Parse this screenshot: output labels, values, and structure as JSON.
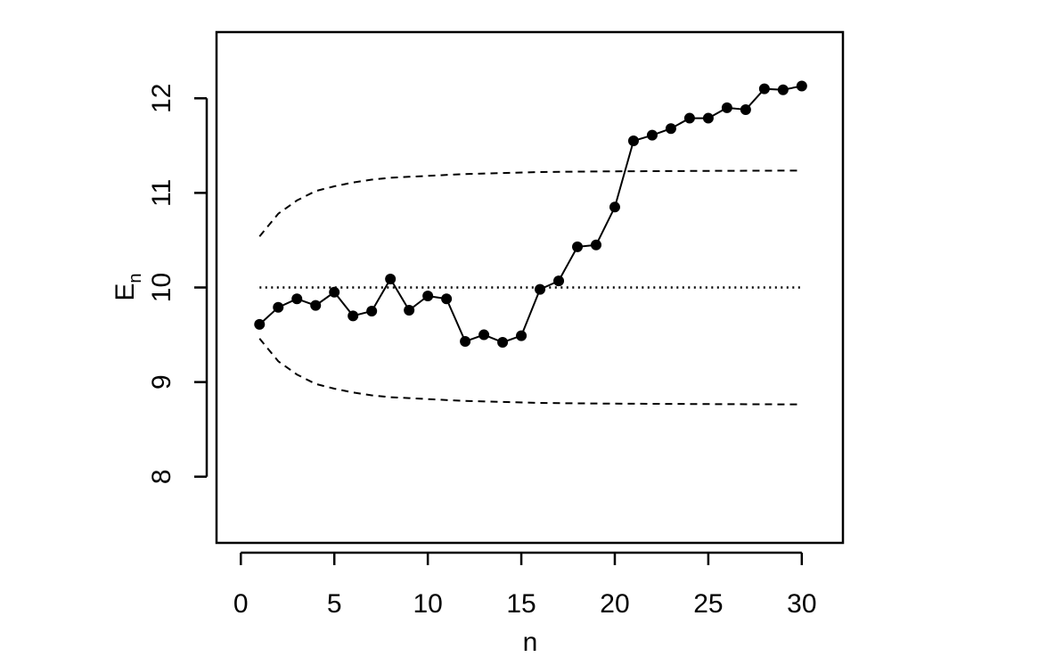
{
  "chart_data": {
    "type": "line",
    "xlabel": "n",
    "ylabel": {
      "main": "E",
      "subscript": "n"
    },
    "xlim": [
      -1.3,
      32.2
    ],
    "ylim": [
      7.3,
      12.7
    ],
    "x_ticks": [
      0,
      5,
      10,
      15,
      20,
      25,
      30
    ],
    "x_tick_labels": [
      "0",
      "5",
      "10",
      "15",
      "20",
      "25",
      "30"
    ],
    "y_ticks": [
      8,
      9,
      10,
      11,
      12
    ],
    "y_tick_labels": [
      "8",
      "9",
      "10",
      "11",
      "12"
    ],
    "grid": false,
    "series": [
      {
        "style": "solid-with-points",
        "x": [
          1,
          2,
          3,
          4,
          5,
          6,
          7,
          8,
          9,
          10,
          11,
          12,
          13,
          14,
          15,
          16,
          17,
          18,
          19,
          20,
          21,
          22,
          23,
          24,
          25,
          26,
          27,
          28,
          29,
          30
        ],
        "values": [
          9.61,
          9.79,
          9.88,
          9.81,
          9.95,
          9.7,
          9.75,
          10.09,
          9.76,
          9.91,
          9.88,
          9.43,
          9.5,
          9.42,
          9.49,
          9.98,
          10.07,
          10.43,
          10.45,
          10.85,
          11.55,
          11.61,
          11.68,
          11.79,
          11.79,
          11.9,
          11.88,
          12.1,
          12.09,
          12.13
        ]
      },
      {
        "style": "dotted",
        "x": [
          1,
          30
        ],
        "values": [
          10.0,
          10.0
        ]
      },
      {
        "style": "dashed",
        "x": [
          1,
          2,
          3,
          4,
          5,
          6,
          7,
          8,
          9,
          10,
          12,
          14,
          16,
          18,
          20,
          22,
          24,
          26,
          28,
          30
        ],
        "values": [
          10.54,
          10.78,
          10.92,
          11.02,
          11.07,
          11.11,
          11.14,
          11.16,
          11.17,
          11.18,
          11.2,
          11.21,
          11.22,
          11.225,
          11.228,
          11.23,
          11.232,
          11.234,
          11.235,
          11.236
        ]
      },
      {
        "style": "dashed",
        "x": [
          1,
          2,
          3,
          4,
          5,
          6,
          7,
          8,
          9,
          10,
          12,
          14,
          16,
          18,
          20,
          22,
          24,
          26,
          28,
          30
        ],
        "values": [
          9.46,
          9.22,
          9.08,
          8.98,
          8.93,
          8.89,
          8.86,
          8.84,
          8.83,
          8.82,
          8.8,
          8.79,
          8.78,
          8.775,
          8.772,
          8.77,
          8.768,
          8.766,
          8.765,
          8.764
        ]
      }
    ]
  }
}
